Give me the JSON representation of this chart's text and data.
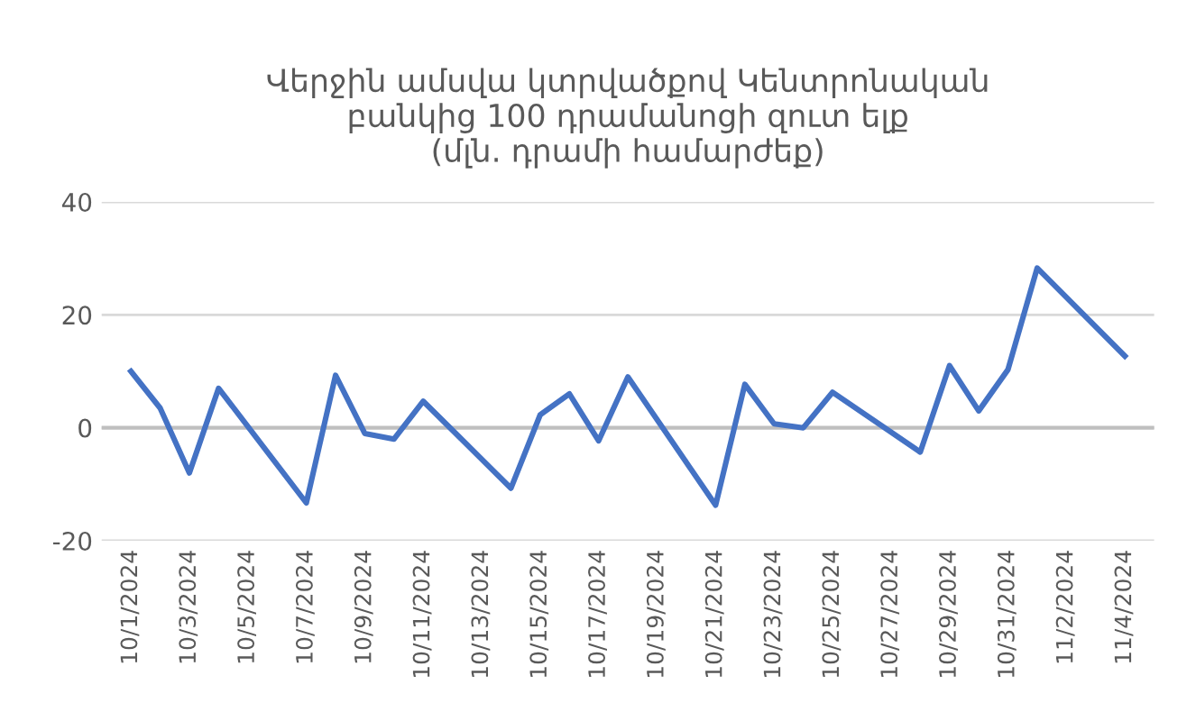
{
  "chart_data": {
    "type": "line",
    "title": "Վերջին ամսվա կտրվածքով Կենտրոնական\nբանկից 100 դրամանոցի զուտ ելք\n(մլն. դրամի համարժեք)",
    "x": [
      "2024-10-01",
      "2024-10-02",
      "2024-10-03",
      "2024-10-04",
      "2024-10-07",
      "2024-10-08",
      "2024-10-09",
      "2024-10-10",
      "2024-10-11",
      "2024-10-14",
      "2024-10-15",
      "2024-10-16",
      "2024-10-17",
      "2024-10-18",
      "2024-10-21",
      "2024-10-22",
      "2024-10-23",
      "2024-10-24",
      "2024-10-25",
      "2024-10-28",
      "2024-10-29",
      "2024-10-30",
      "2024-10-31",
      "2024-11-01",
      "2024-11-04"
    ],
    "series": [
      {
        "color": "#4472c4",
        "values": [
          10,
          3.5,
          -8,
          7,
          -13.3,
          9.3,
          -1,
          -2,
          4.7,
          -10.7,
          2.3,
          6,
          -2.3,
          9,
          -13.7,
          7.7,
          0.7,
          0,
          6.3,
          -4.3,
          11,
          3,
          10.3,
          28.3,
          12.7
        ]
      }
    ],
    "xlim": [
      "2024-09-30",
      "2024-11-05"
    ],
    "xticks": [
      {
        "value": "2024-10-01",
        "label": "10/1/2024"
      },
      {
        "value": "2024-10-03",
        "label": "10/3/2024"
      },
      {
        "value": "2024-10-05",
        "label": "10/5/2024"
      },
      {
        "value": "2024-10-07",
        "label": "10/7/2024"
      },
      {
        "value": "2024-10-09",
        "label": "10/9/2024"
      },
      {
        "value": "2024-10-11",
        "label": "10/11/2024"
      },
      {
        "value": "2024-10-13",
        "label": "10/13/2024"
      },
      {
        "value": "2024-10-15",
        "label": "10/15/2024"
      },
      {
        "value": "2024-10-17",
        "label": "10/17/2024"
      },
      {
        "value": "2024-10-19",
        "label": "10/19/2024"
      },
      {
        "value": "2024-10-21",
        "label": "10/21/2024"
      },
      {
        "value": "2024-10-23",
        "label": "10/23/2024"
      },
      {
        "value": "2024-10-25",
        "label": "10/25/2024"
      },
      {
        "value": "2024-10-27",
        "label": "10/27/2024"
      },
      {
        "value": "2024-10-29",
        "label": "10/29/2024"
      },
      {
        "value": "2024-10-31",
        "label": "10/31/2024"
      },
      {
        "value": "2024-11-02",
        "label": "11/2/2024"
      },
      {
        "value": "2024-11-04",
        "label": "11/4/2024"
      }
    ],
    "ylim": [
      -20,
      40
    ],
    "yticks": [
      -20,
      0,
      20,
      40
    ],
    "grid": "y",
    "marker": "none",
    "line_style": "solid"
  }
}
